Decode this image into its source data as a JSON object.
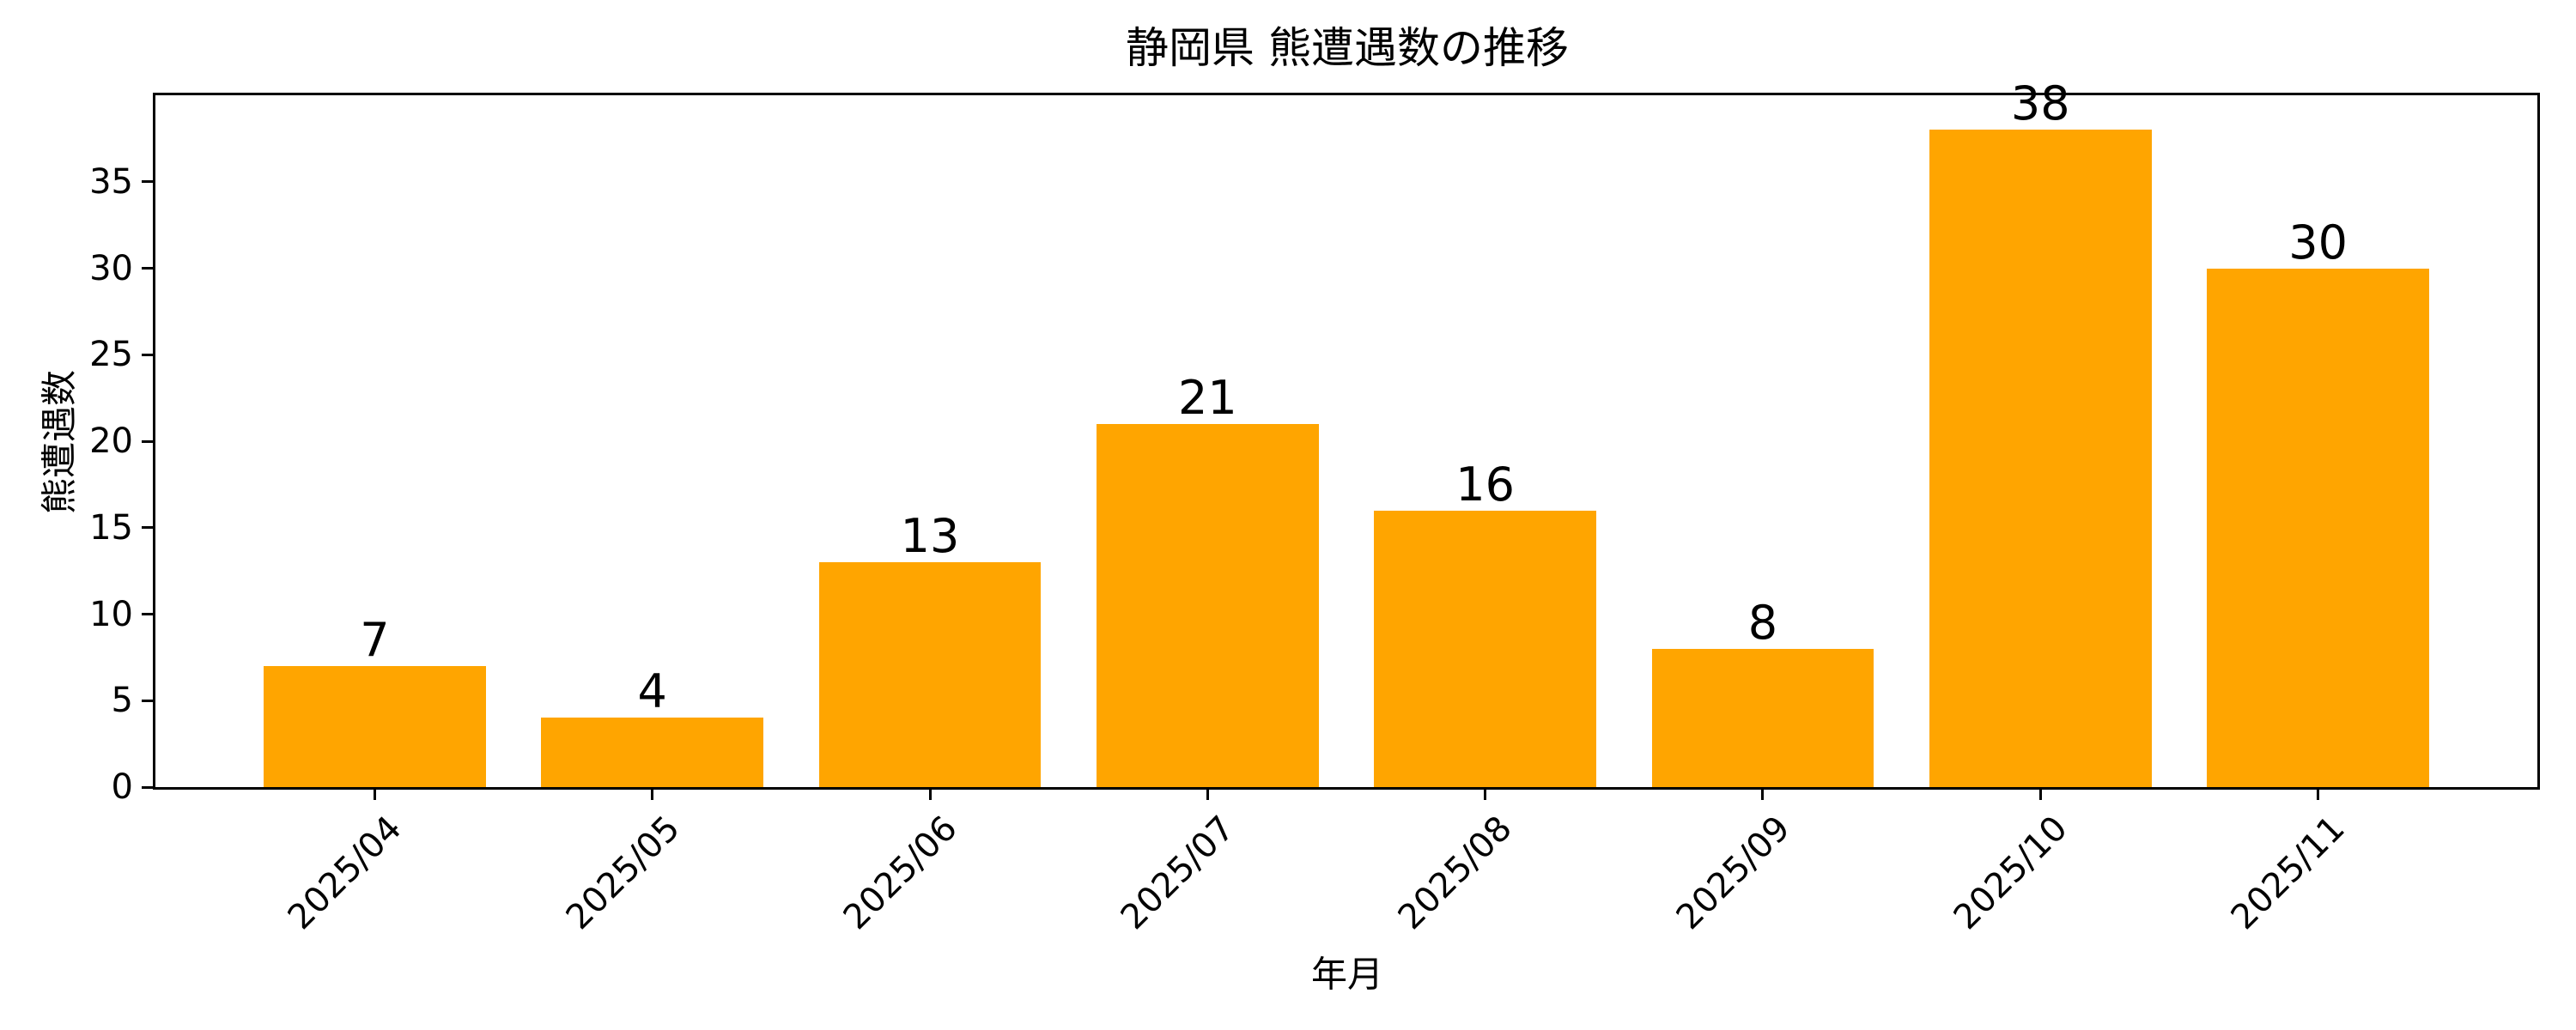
{
  "chart_data": {
    "type": "bar",
    "title": "静岡県 熊遭遇数の推移",
    "xlabel": "年月",
    "ylabel": "熊遭遇数",
    "categories": [
      "2025/04",
      "2025/05",
      "2025/06",
      "2025/07",
      "2025/08",
      "2025/09",
      "2025/10",
      "2025/11"
    ],
    "values": [
      7,
      4,
      13,
      21,
      16,
      8,
      38,
      30
    ],
    "value_labels": [
      "7",
      "4",
      "13",
      "21",
      "16",
      "8",
      "38",
      "30"
    ],
    "yticks": [
      "0",
      "5",
      "10",
      "15",
      "20",
      "25",
      "30",
      "35"
    ],
    "ylim": [
      0,
      40
    ],
    "bar_color": "#FFA500",
    "axis_color": "#000000",
    "background_color": "#ffffff",
    "grid": false,
    "legend_position": "none",
    "x_tick_label_rotation_deg": 45
  }
}
